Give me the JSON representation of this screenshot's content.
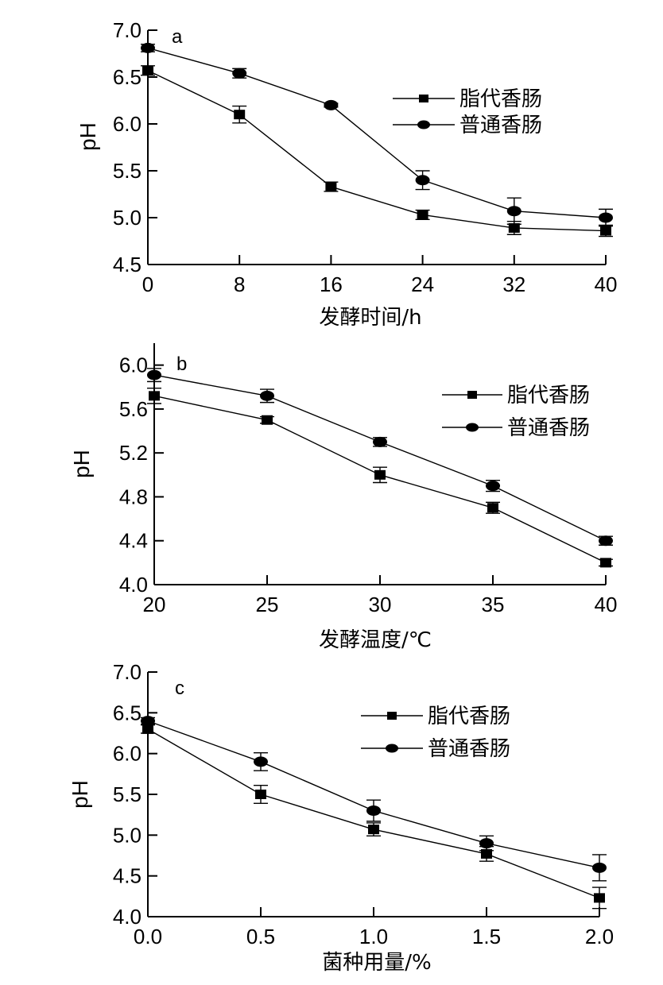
{
  "chart_data": [
    {
      "type": "line",
      "panel_label": "a",
      "xlabel": "发酵时间/h",
      "ylabel": "pH",
      "x": [
        0,
        8,
        16,
        24,
        32,
        40
      ],
      "x_tick_labels": [
        "0",
        "8",
        "16",
        "24",
        "32",
        "40"
      ],
      "xlim": [
        0,
        40
      ],
      "ylim": [
        4.5,
        7.0
      ],
      "y_ticks": [
        4.5,
        5.0,
        5.5,
        6.0,
        6.5,
        7.0
      ],
      "y_tick_labels": [
        "4.5",
        "5.0",
        "5.5",
        "6.0",
        "6.5",
        "7.0"
      ],
      "legend_position": "top-right",
      "grid": false,
      "series": [
        {
          "name": "脂代香肠",
          "marker": "square",
          "values": [
            6.57,
            6.1,
            5.33,
            5.03,
            4.89,
            4.86
          ],
          "errors": [
            0.05,
            0.09,
            0.05,
            0.05,
            0.07,
            0.06
          ]
        },
        {
          "name": "普通香肠",
          "marker": "circle",
          "values": [
            6.81,
            6.54,
            6.2,
            5.4,
            5.07,
            5.0
          ],
          "errors": [
            0.04,
            0.05,
            0.02,
            0.1,
            0.14,
            0.09
          ]
        }
      ]
    },
    {
      "type": "line",
      "panel_label": "b",
      "xlabel": "发酵温度/℃",
      "ylabel": "pH",
      "x": [
        20,
        25,
        30,
        35,
        40
      ],
      "x_tick_labels": [
        "20",
        "25",
        "30",
        "35",
        "40"
      ],
      "xlim": [
        20,
        40
      ],
      "ylim": [
        4.0,
        6.2
      ],
      "y_ticks": [
        4.0,
        4.4,
        4.8,
        5.2,
        5.6,
        6.0
      ],
      "y_tick_labels": [
        "4.0",
        "4.4",
        "4.8",
        "5.2",
        "5.6",
        "6.0"
      ],
      "legend_position": "top-right",
      "grid": false,
      "series": [
        {
          "name": "脂代香肠",
          "marker": "square",
          "values": [
            5.72,
            5.5,
            5.0,
            4.7,
            4.2
          ],
          "errors": [
            0.07,
            0.03,
            0.07,
            0.05,
            0.03
          ]
        },
        {
          "name": "普通香肠",
          "marker": "circle",
          "values": [
            5.91,
            5.72,
            5.3,
            4.9,
            4.4
          ],
          "errors": [
            0.06,
            0.06,
            0.04,
            0.05,
            0.04
          ]
        }
      ]
    },
    {
      "type": "line",
      "panel_label": "c",
      "xlabel": "菌种用量/%",
      "ylabel": "pH",
      "x": [
        0.0,
        0.5,
        1.0,
        1.5,
        2.0
      ],
      "x_tick_labels": [
        "0.0",
        "0.5",
        "1.0",
        "1.5",
        "2.0"
      ],
      "xlim": [
        0.0,
        2.0
      ],
      "ylim": [
        4.0,
        7.0
      ],
      "y_ticks": [
        4.0,
        4.5,
        5.0,
        5.5,
        6.0,
        6.5,
        7.0
      ],
      "y_tick_labels": [
        "4.0",
        "4.5",
        "5.0",
        "5.5",
        "6.0",
        "6.5",
        "7.0"
      ],
      "legend_position": "top-right",
      "grid": false,
      "series": [
        {
          "name": "脂代香肠",
          "marker": "square",
          "values": [
            6.3,
            5.5,
            5.07,
            4.77,
            4.23
          ],
          "errors": [
            0.05,
            0.11,
            0.08,
            0.09,
            0.13
          ]
        },
        {
          "name": "普通香肠",
          "marker": "circle",
          "values": [
            6.4,
            5.9,
            5.3,
            4.9,
            4.6
          ],
          "errors": [
            0.04,
            0.11,
            0.13,
            0.09,
            0.16
          ]
        }
      ]
    }
  ]
}
